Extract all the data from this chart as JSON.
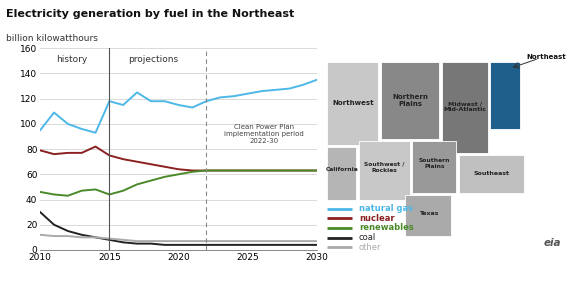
{
  "title": "Electricity generation by fuel in the Northeast",
  "subtitle": "billion kilowatthours",
  "ylim": [
    0,
    160
  ],
  "yticks": [
    0,
    20,
    40,
    60,
    80,
    100,
    120,
    140,
    160
  ],
  "xlim": [
    2010,
    2030
  ],
  "xticks": [
    2010,
    2015,
    2020,
    2025,
    2030
  ],
  "history_line": 2015,
  "cpp_line": 2022,
  "cpp_label": "Clean Power Plan\nimplementation period\n2022-30",
  "series": {
    "natural_gas": {
      "color": "#4db8e8",
      "label": "natural gas",
      "x": [
        2010,
        2011,
        2012,
        2013,
        2014,
        2015,
        2016,
        2017,
        2018,
        2019,
        2020,
        2021,
        2022,
        2023,
        2024,
        2025,
        2026,
        2027,
        2028,
        2029,
        2030
      ],
      "y": [
        95,
        109,
        100,
        96,
        93,
        118,
        115,
        125,
        118,
        118,
        115,
        113,
        118,
        121,
        122,
        124,
        126,
        127,
        128,
        131,
        135
      ]
    },
    "nuclear": {
      "color": "#8b2020",
      "label": "nuclear",
      "x": [
        2010,
        2011,
        2012,
        2013,
        2014,
        2015,
        2016,
        2017,
        2018,
        2019,
        2020,
        2021,
        2022,
        2023,
        2024,
        2025,
        2026,
        2027,
        2028,
        2029,
        2030
      ],
      "y": [
        79,
        76,
        77,
        77,
        82,
        75,
        72,
        70,
        68,
        66,
        64,
        63,
        63,
        63,
        63,
        63,
        63,
        63,
        63,
        63,
        63
      ]
    },
    "renewables": {
      "color": "#4a8a2a",
      "label": "renewables",
      "x": [
        2010,
        2011,
        2012,
        2013,
        2014,
        2015,
        2016,
        2017,
        2018,
        2019,
        2020,
        2021,
        2022,
        2023,
        2024,
        2025,
        2026,
        2027,
        2028,
        2029,
        2030
      ],
      "y": [
        46,
        44,
        43,
        47,
        48,
        44,
        47,
        52,
        55,
        58,
        60,
        62,
        63,
        63,
        63,
        63,
        63,
        63,
        63,
        63,
        63
      ]
    },
    "coal": {
      "color": "#222222",
      "label": "coal",
      "x": [
        2010,
        2011,
        2012,
        2013,
        2014,
        2015,
        2016,
        2017,
        2018,
        2019,
        2020,
        2021,
        2022,
        2023,
        2024,
        2025,
        2026,
        2027,
        2028,
        2029,
        2030
      ],
      "y": [
        30,
        20,
        15,
        12,
        10,
        8,
        6,
        5,
        5,
        4,
        4,
        4,
        4,
        4,
        4,
        4,
        4,
        4,
        4,
        4,
        4
      ]
    },
    "other": {
      "color": "#aaaaaa",
      "label": "other",
      "x": [
        2010,
        2011,
        2012,
        2013,
        2014,
        2015,
        2016,
        2017,
        2018,
        2019,
        2020,
        2021,
        2022,
        2023,
        2024,
        2025,
        2026,
        2027,
        2028,
        2029,
        2030
      ],
      "y": [
        12,
        11,
        11,
        10,
        10,
        9,
        8,
        7,
        7,
        7,
        7,
        7,
        7,
        7,
        7,
        7,
        7,
        7,
        7,
        7,
        7
      ]
    }
  },
  "legend_items": [
    {
      "label": "natural gas",
      "color": "#4db8e8"
    },
    {
      "label": "nuclear",
      "color": "#8b2020"
    },
    {
      "label": "renewables",
      "color": "#4a8a2a"
    },
    {
      "label": "coal",
      "color": "#222222"
    },
    {
      "label": "other",
      "color": "#aaaaaa"
    }
  ],
  "background_color": "#ffffff",
  "grid_color": "#cccccc"
}
